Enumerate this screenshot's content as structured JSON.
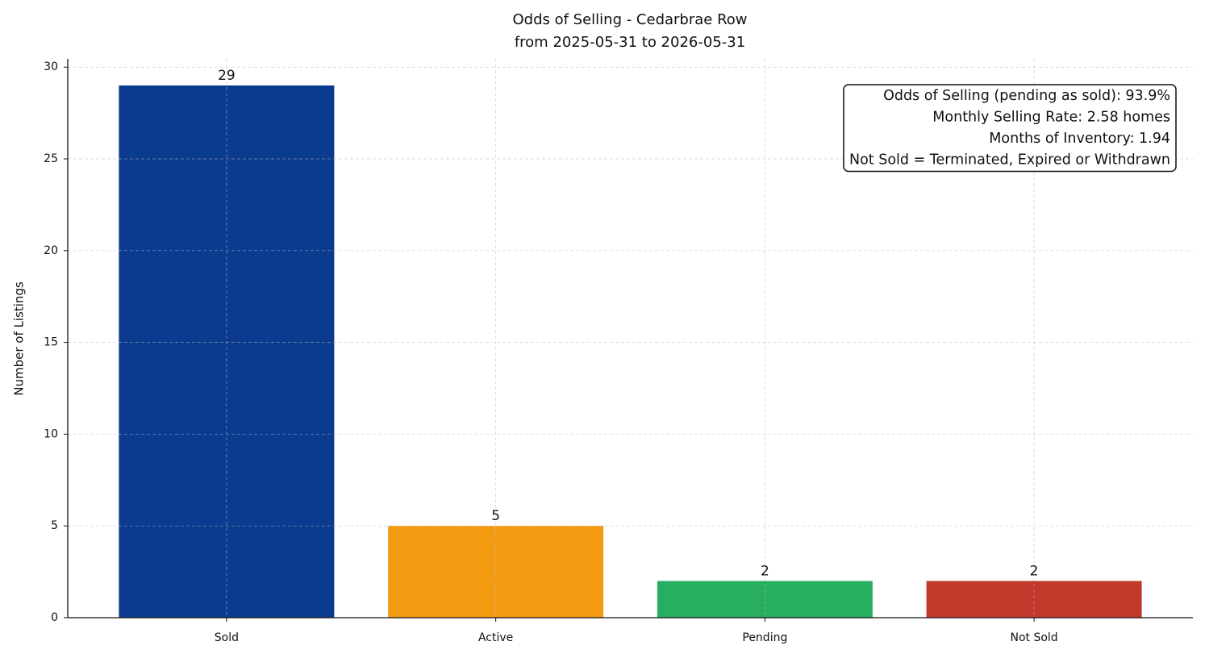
{
  "chart_data": {
    "type": "bar",
    "title": "Odds of Selling - Cedarbrae Row",
    "subtitle": "from 2025-05-31 to 2026-05-31",
    "y_label": "Number of Listings",
    "categories": [
      "Sold",
      "Active",
      "Pending",
      "Not Sold"
    ],
    "values": [
      29,
      5,
      2,
      2
    ],
    "colors": [
      "#0b3b8f",
      "#f39c12",
      "#27ae60",
      "#c0392b"
    ],
    "ylim": [
      0,
      30.45
    ],
    "yticks": [
      0,
      5,
      10,
      15,
      20,
      25,
      30
    ],
    "grid": true,
    "annotation": [
      "Odds of Selling (pending as sold): 93.9%",
      "Monthly Selling Rate: 2.58 homes",
      "Months of Inventory: 1.94",
      "Not Sold = Terminated, Expired or Withdrawn"
    ]
  }
}
